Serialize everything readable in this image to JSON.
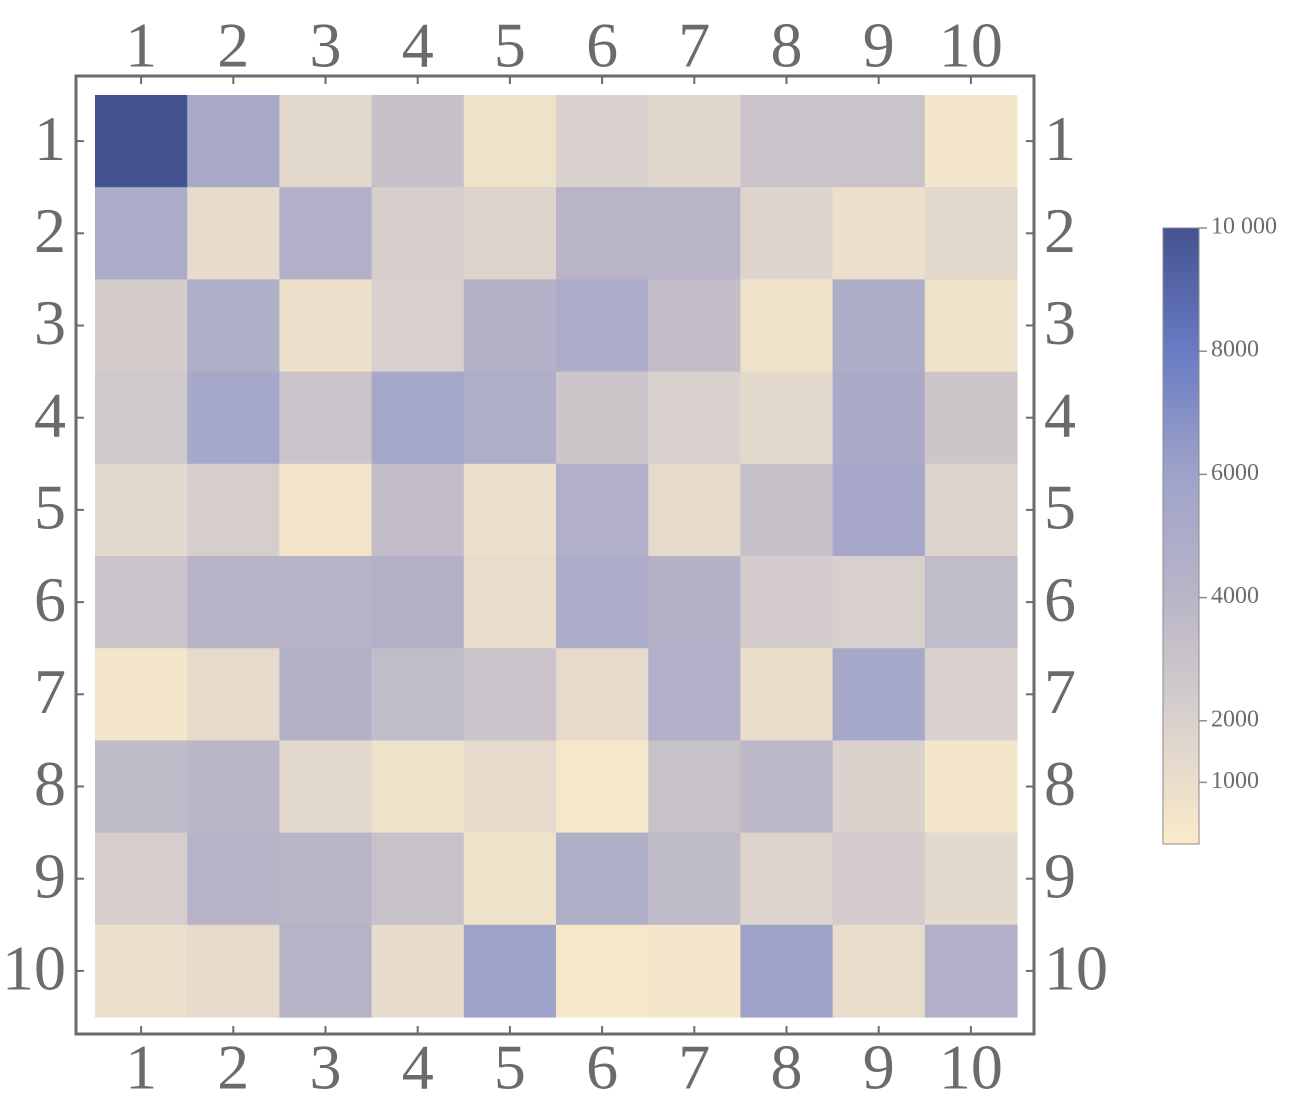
{
  "chart_data": {
    "type": "heatmap",
    "title": "",
    "xlabel": "",
    "ylabel": "",
    "x_ticks": [
      "1",
      "2",
      "3",
      "4",
      "5",
      "6",
      "7",
      "8",
      "9",
      "10"
    ],
    "y_ticks": [
      "1",
      "2",
      "3",
      "4",
      "5",
      "6",
      "7",
      "8",
      "9",
      "10"
    ],
    "values": [
      [
        10000,
        5200,
        1500,
        3200,
        700,
        2000,
        1600,
        2900,
        3000,
        400
      ],
      [
        5000,
        1200,
        4600,
        2200,
        1800,
        4000,
        4000,
        1800,
        900,
        1500
      ],
      [
        2300,
        4700,
        800,
        2100,
        4400,
        5000,
        3400,
        700,
        4900,
        700
      ],
      [
        2600,
        5500,
        2900,
        5500,
        4800,
        2800,
        2000,
        1400,
        5100,
        2800
      ],
      [
        1400,
        2200,
        500,
        3400,
        900,
        4600,
        1300,
        3200,
        5400,
        1800
      ],
      [
        2900,
        4100,
        4200,
        4500,
        1100,
        5000,
        4400,
        2400,
        2100,
        3500
      ],
      [
        400,
        1300,
        4500,
        3500,
        2900,
        1300,
        4600,
        1000,
        5500,
        2000
      ],
      [
        3600,
        3900,
        1400,
        700,
        1300,
        300,
        3100,
        3800,
        1900,
        400
      ],
      [
        2200,
        4100,
        4000,
        3100,
        700,
        4700,
        3600,
        1800,
        2400,
        1400
      ],
      [
        900,
        1300,
        4200,
        1200,
        6000,
        300,
        400,
        6000,
        1100,
        4600
      ]
    ],
    "colorbar": {
      "min": 0,
      "max": 10000,
      "ticks": [
        {
          "value": 10000,
          "label": "10 000"
        },
        {
          "value": 8000,
          "label": "8000"
        },
        {
          "value": 6000,
          "label": "6000"
        },
        {
          "value": 4000,
          "label": "4000"
        },
        {
          "value": 2000,
          "label": "2000"
        },
        {
          "value": 1000,
          "label": "1000"
        }
      ],
      "colors": [
        "#fbebc9",
        "#d9d1cd",
        "#b9b5c7",
        "#9fa3ca",
        "#6a7bc4",
        "#44528f"
      ]
    },
    "frame_color": "#6b6b6b",
    "grid": false,
    "legend": "right"
  }
}
